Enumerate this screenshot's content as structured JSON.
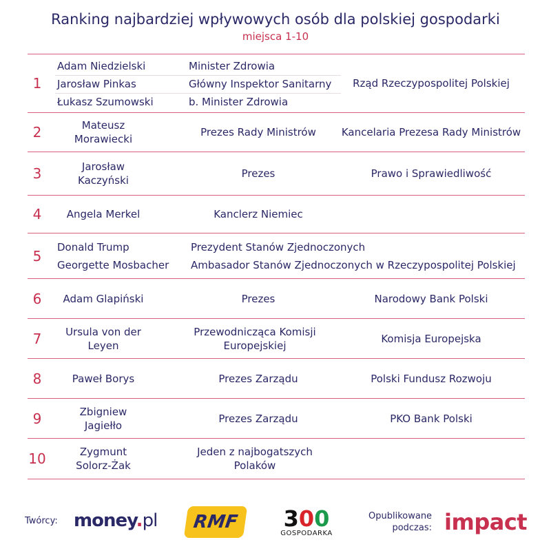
{
  "title": "Ranking najbardziej wpływowych osób dla polskiej gospodarki",
  "subtitle": "miejsca 1-10",
  "colors": {
    "navy": "#2a2866",
    "accent": "#c8304f",
    "rmf_yellow": "#f7c21c"
  },
  "rows": [
    {
      "rank": "1",
      "people": [
        {
          "name": "Adam Niedzielski",
          "position": "Minister Zdrowia"
        },
        {
          "name": "Jarosław Pinkas",
          "position": "Główny Inspektor Sanitarny"
        },
        {
          "name": "Łukasz Szumowski",
          "position": "b. Minister Zdrowia"
        }
      ],
      "institution": "Rząd Rzeczypospolitej Polskiej"
    },
    {
      "rank": "2",
      "name": "Mateusz Morawiecki",
      "position": "Prezes Rady Ministrów",
      "institution": "Kancelaria Prezesa Rady Ministrów"
    },
    {
      "rank": "3",
      "name": "Jarosław Kaczyński",
      "position": "Prezes",
      "institution": "Prawo i Sprawiedliwość"
    },
    {
      "rank": "4",
      "name": "Angela Merkel",
      "position": "Kanclerz Niemiec",
      "institution": ""
    },
    {
      "rank": "5",
      "people": [
        {
          "name": "Donald Trump",
          "position": "Prezydent Stanów Zjednoczonych"
        },
        {
          "name": "Georgette Mosbacher",
          "position": "Ambasador Stanów Zjednoczonych w Rzeczypospolitej Polskiej"
        }
      ]
    },
    {
      "rank": "6",
      "name": "Adam Glapiński",
      "position": "Prezes",
      "institution": "Narodowy Bank Polski"
    },
    {
      "rank": "7",
      "name": "Ursula von der Leyen",
      "position": "Przewodnicząca Komisji Europejskiej",
      "institution": "Komisja Europejska"
    },
    {
      "rank": "8",
      "name": "Paweł Borys",
      "position": "Prezes Zarządu",
      "institution": "Polski Fundusz Rozwoju"
    },
    {
      "rank": "9",
      "name": "Zbigniew Jagiełło",
      "position": "Prezes Zarządu",
      "institution": "PKO Bank Polski"
    },
    {
      "rank": "10",
      "name": "Zygmunt Solorz-Żak",
      "position": "Jeden z najbogatszych Polaków",
      "institution": ""
    }
  ],
  "footer": {
    "creators_label": "Twórcy:",
    "published_label": "Opublikowane podczas:",
    "logos": [
      "money.pl",
      "RMF",
      "300 GOSPODARKA",
      "impact"
    ],
    "logo_300_top": "300",
    "logo_300_bottom": "GOSPODARKA"
  }
}
